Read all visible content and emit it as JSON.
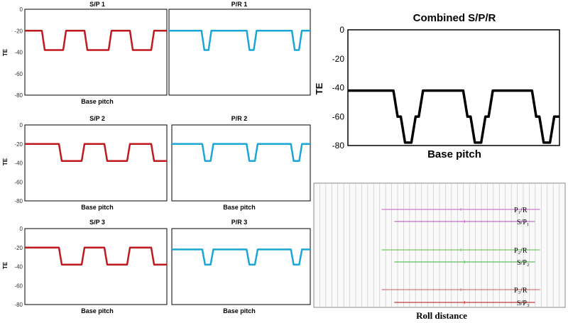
{
  "colors": {
    "sp": "#c0191f",
    "pr": "#1aa6d6",
    "combined": "#000000",
    "p1r": "#d07ad0",
    "sp1": "#c070c8",
    "p2r": "#7cc86a",
    "sp2": "#5fbf5f",
    "p3r": "#d87a7a",
    "sp3": "#c04040",
    "grid": "#c8c8c8"
  },
  "chart_data": [
    {
      "id": "sp1",
      "type": "line",
      "title": "S/P 1",
      "xlabel": "Base pitch",
      "ylabel": "TE",
      "ylim": [
        -80,
        0
      ],
      "yticks": [
        0,
        -20,
        -40,
        -60,
        -80
      ],
      "color_key": "sp",
      "series": [
        {
          "x": [
            0,
            0.12,
            0.14,
            0.27,
            0.29,
            0.42,
            0.44,
            0.59,
            0.61,
            0.74,
            0.76,
            0.89,
            0.91,
            1.0
          ],
          "y": [
            -20,
            -20,
            -38,
            -38,
            -20,
            -20,
            -38,
            -38,
            -20,
            -20,
            -38,
            -38,
            -20,
            -20
          ]
        }
      ]
    },
    {
      "id": "pr1",
      "type": "line",
      "title": "P/R 1",
      "xlabel": "",
      "ylabel": "",
      "ylim": [
        -80,
        0
      ],
      "yticks": [],
      "color_key": "pr",
      "series": [
        {
          "x": [
            0,
            0.23,
            0.25,
            0.28,
            0.3,
            0.55,
            0.57,
            0.6,
            0.62,
            0.87,
            0.89,
            0.92,
            0.94,
            1.0
          ],
          "y": [
            -20,
            -20,
            -38,
            -38,
            -20,
            -20,
            -38,
            -38,
            -20,
            -20,
            -38,
            -38,
            -20,
            -20
          ]
        }
      ]
    },
    {
      "id": "sp2",
      "type": "line",
      "title": "S/P 2",
      "xlabel": "Base pitch",
      "ylabel": "TE",
      "ylim": [
        -80,
        0
      ],
      "yticks": [
        0,
        -20,
        -40,
        -60,
        -80
      ],
      "color_key": "sp",
      "series": [
        {
          "x": [
            0,
            0.24,
            0.26,
            0.4,
            0.42,
            0.56,
            0.58,
            0.72,
            0.74,
            0.89,
            0.91,
            1.0
          ],
          "y": [
            -20,
            -20,
            -38,
            -38,
            -20,
            -20,
            -38,
            -38,
            -20,
            -20,
            -38,
            -38
          ]
        }
      ]
    },
    {
      "id": "pr2",
      "type": "line",
      "title": "P/R 2",
      "xlabel": "Base pitch",
      "ylabel": "",
      "ylim": [
        -80,
        0
      ],
      "yticks": [],
      "color_key": "pr",
      "series": [
        {
          "x": [
            0,
            0.22,
            0.24,
            0.28,
            0.3,
            0.54,
            0.56,
            0.6,
            0.62,
            0.86,
            0.88,
            0.92,
            0.94,
            1.0
          ],
          "y": [
            -20,
            -20,
            -38,
            -38,
            -20,
            -20,
            -38,
            -38,
            -20,
            -20,
            -38,
            -38,
            -20,
            -20
          ]
        }
      ]
    },
    {
      "id": "sp3",
      "type": "line",
      "title": "S/P 3",
      "xlabel": "Base pitch",
      "ylabel": "TE",
      "ylim": [
        -80,
        0
      ],
      "yticks": [
        0,
        -20,
        -40,
        -60,
        -80
      ],
      "color_key": "sp",
      "series": [
        {
          "x": [
            0,
            0.24,
            0.26,
            0.4,
            0.42,
            0.56,
            0.58,
            0.72,
            0.74,
            0.89,
            0.91,
            1.0
          ],
          "y": [
            -20,
            -20,
            -38,
            -38,
            -20,
            -20,
            -38,
            -38,
            -20,
            -20,
            -38,
            -38
          ]
        }
      ]
    },
    {
      "id": "pr3",
      "type": "line",
      "title": "P/R 3",
      "xlabel": "Base pitch",
      "ylabel": "",
      "ylim": [
        -80,
        0
      ],
      "yticks": [],
      "color_key": "pr",
      "series": [
        {
          "x": [
            0,
            0.22,
            0.24,
            0.28,
            0.3,
            0.54,
            0.56,
            0.6,
            0.62,
            0.86,
            0.88,
            0.92,
            0.94,
            1.0
          ],
          "y": [
            -22,
            -22,
            -38,
            -38,
            -22,
            -22,
            -38,
            -38,
            -22,
            -22,
            -38,
            -38,
            -22,
            -22
          ]
        }
      ]
    },
    {
      "id": "combined",
      "type": "line",
      "title": "Combined S/P/R",
      "xlabel": "Base pitch",
      "ylabel": "TE",
      "ylim": [
        -80,
        0
      ],
      "yticks": [
        0,
        -20,
        -40,
        -60,
        -80
      ],
      "color_key": "combined",
      "series": [
        {
          "x": [
            0,
            0.215,
            0.235,
            0.25,
            0.27,
            0.3,
            0.32,
            0.335,
            0.355,
            0.545,
            0.565,
            0.58,
            0.6,
            0.63,
            0.65,
            0.665,
            0.685,
            0.87,
            0.89,
            0.905,
            0.925,
            0.955,
            0.975,
            0.99,
            1.0
          ],
          "y": [
            -42,
            -42,
            -60,
            -60,
            -78,
            -78,
            -60,
            -60,
            -42,
            -42,
            -60,
            -60,
            -78,
            -78,
            -60,
            -60,
            -42,
            -42,
            -60,
            -60,
            -78,
            -78,
            -60,
            -60,
            -60
          ]
        }
      ]
    },
    {
      "id": "roll",
      "type": "line",
      "title": "Roll distance",
      "series": [
        {
          "name": "P₁/R",
          "color_key": "p1r",
          "x": [
            0.27,
            0.9
          ]
        },
        {
          "name": "S/P₁",
          "color_key": "sp1",
          "x": [
            0.32,
            0.88
          ]
        },
        {
          "name": "P₂/R",
          "color_key": "p2r",
          "x": [
            0.27,
            0.9
          ]
        },
        {
          "name": "S/P₂",
          "color_key": "sp2",
          "x": [
            0.32,
            0.88
          ]
        },
        {
          "name": "P₃/R",
          "color_key": "p3r",
          "x": [
            0.27,
            0.9
          ]
        },
        {
          "name": "S/P₃",
          "color_key": "sp3",
          "x": [
            0.32,
            0.88
          ]
        }
      ]
    }
  ]
}
